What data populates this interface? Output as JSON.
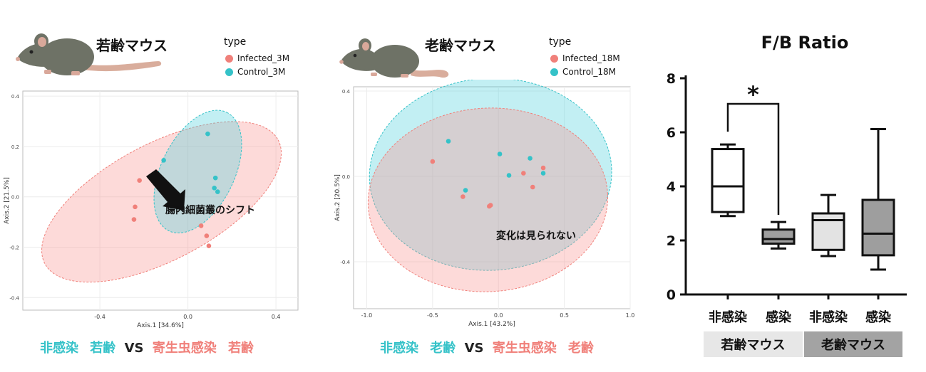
{
  "colors": {
    "infected": "#f0807a",
    "control": "#35c2c8",
    "infected_fill": "rgba(248,150,145,0.35)",
    "control_fill": "rgba(80,210,220,0.35)",
    "box_light": "#e3e3e3",
    "box_dark": "#9e9e9e"
  },
  "panels": {
    "young": {
      "title": "若齢マウス",
      "legend_title": "type",
      "legend_infected": "Infected_3M",
      "legend_control": "Control_3M",
      "caption": {
        "a": "非感染",
        "b": "若齢",
        "vs": "VS",
        "c": "寄生虫感染",
        "d": "若齢"
      }
    },
    "old": {
      "title": "老齢マウス",
      "legend_title": "type",
      "legend_infected": "Infected_18M",
      "legend_control": "Control_18M",
      "caption": {
        "a": "非感染",
        "b": "老齢",
        "vs": "VS",
        "c": "寄生虫感染",
        "d": "老齢"
      }
    }
  },
  "chart_data": [
    {
      "type": "scatter",
      "xlabel": "Axis.1  [34.6%]",
      "ylabel": "Axis.2  [21.5%]",
      "xlim": [
        -0.75,
        0.5
      ],
      "ylim": [
        -0.45,
        0.42
      ],
      "xticks": [
        -0.4,
        0.0,
        0.4
      ],
      "yticks": [
        -0.4,
        -0.2,
        0.0,
        0.2,
        0.4
      ],
      "xtick_labels": [
        "-0.4",
        "0.0",
        "0.4"
      ],
      "ytick_labels": [
        "-0.4",
        "-0.2",
        "0.0",
        "0.2",
        "0.4"
      ],
      "annotation": "腸内細菌叢のシフト",
      "series": [
        {
          "name": "Infected_3M",
          "points": [
            [
              -0.22,
              0.065
            ],
            [
              -0.24,
              -0.04
            ],
            [
              -0.245,
              -0.09
            ],
            [
              0.06,
              -0.115
            ],
            [
              0.085,
              -0.155
            ],
            [
              0.095,
              -0.195
            ]
          ]
        },
        {
          "name": "Control_3M",
          "points": [
            [
              0.09,
              0.25
            ],
            [
              -0.11,
              0.145
            ],
            [
              0.125,
              0.075
            ],
            [
              0.12,
              0.035
            ],
            [
              0.135,
              0.02
            ]
          ]
        }
      ],
      "ellipses": [
        {
          "series": "Infected_3M",
          "cx": -0.12,
          "cy": -0.02,
          "rx": 0.6,
          "ry": 0.23,
          "angle": -28
        },
        {
          "series": "Control_3M",
          "cx": 0.045,
          "cy": 0.1,
          "rx": 0.3,
          "ry": 0.145,
          "angle": -64
        }
      ]
    },
    {
      "type": "scatter",
      "xlabel": "Axis.1   [43.2%]",
      "ylabel": "Axis.2   [20.5%]",
      "xlim": [
        -1.1,
        1.0
      ],
      "ylim": [
        -0.62,
        0.42
      ],
      "xticks": [
        -1.0,
        -0.5,
        0.0,
        0.5,
        1.0
      ],
      "yticks": [
        -0.4,
        0.0,
        0.4
      ],
      "xtick_labels": [
        "-1.0",
        "-0.5",
        "0.0",
        "0.5",
        "1.0"
      ],
      "ytick_labels": [
        "-0.4",
        "0.0",
        "0.4"
      ],
      "annotation": "変化は見られない",
      "series": [
        {
          "name": "Infected_18M",
          "points": [
            [
              -0.5,
              0.07
            ],
            [
              0.19,
              0.015
            ],
            [
              0.34,
              0.04
            ],
            [
              0.26,
              -0.05
            ],
            [
              -0.27,
              -0.095
            ],
            [
              -0.06,
              -0.135
            ],
            [
              -0.07,
              -0.14
            ]
          ]
        },
        {
          "name": "Control_18M",
          "points": [
            [
              -0.38,
              0.165
            ],
            [
              0.01,
              0.105
            ],
            [
              0.24,
              0.085
            ],
            [
              0.08,
              0.005
            ],
            [
              0.34,
              0.015
            ],
            [
              -0.25,
              -0.065
            ]
          ]
        }
      ],
      "ellipses": [
        {
          "series": "Control_18M",
          "cx": -0.06,
          "cy": 0.01,
          "rx": 0.92,
          "ry": 0.45,
          "angle": -3
        },
        {
          "series": "Infected_18M",
          "cx": -0.08,
          "cy": -0.11,
          "rx": 0.91,
          "ry": 0.43,
          "angle": -3
        }
      ]
    },
    {
      "type": "box",
      "title": "F/B Ratio",
      "ylim": [
        0,
        8
      ],
      "yticks": [
        0,
        2,
        4,
        6,
        8
      ],
      "ytick_labels": [
        "0",
        "2",
        "4",
        "6",
        "8"
      ],
      "categories": [
        "非感染",
        "感染",
        "非感染",
        "感染"
      ],
      "groups": [
        {
          "label": "若齢マウス",
          "members": [
            0,
            1
          ]
        },
        {
          "label": "老齢マウス",
          "members": [
            2,
            3
          ]
        }
      ],
      "boxes": [
        {
          "min": 2.9,
          "q1": 3.05,
          "median": 4.0,
          "q3": 5.38,
          "max": 5.55,
          "fill": "#ffffff"
        },
        {
          "min": 1.7,
          "q1": 1.88,
          "median": 2.05,
          "q3": 2.4,
          "max": 2.68,
          "fill": "#9e9e9e"
        },
        {
          "min": 1.42,
          "q1": 1.65,
          "median": 2.75,
          "q3": 3.0,
          "max": 3.68,
          "fill": "#e3e3e3"
        },
        {
          "min": 0.92,
          "q1": 1.45,
          "median": 2.25,
          "q3": 3.5,
          "max": 6.12,
          "fill": "#9e9e9e"
        }
      ],
      "significance": {
        "between": [
          0,
          1
        ],
        "label": "*"
      }
    }
  ]
}
